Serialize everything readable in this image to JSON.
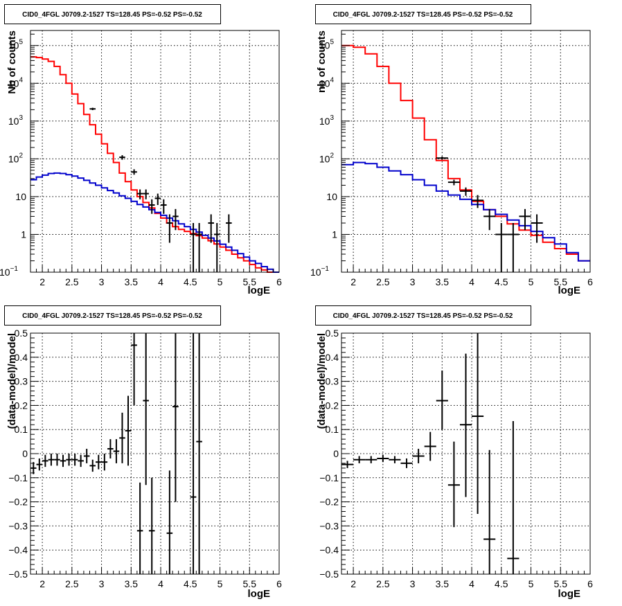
{
  "chart_data": [
    {
      "type": "line",
      "title": "CID0_4FGL J0709.2-1527 TS=128.45 PS=-0.52 PS=-0.52",
      "xlabel": "logE",
      "ylabel": "Nb of counts",
      "xlim": [
        1.8,
        6.0
      ],
      "ylim": [
        0.1,
        250000
      ],
      "yscale": "log",
      "grid": true,
      "x_ticks": [
        "2",
        "2.5",
        "3",
        "3.5",
        "4",
        "4.5",
        "5",
        "5.5",
        "6"
      ],
      "y_ticks": [
        {
          "value": 0.1,
          "m": "10",
          "e": "−1"
        },
        {
          "value": 1,
          "m": "1",
          "e": ""
        },
        {
          "value": 10,
          "m": "10",
          "e": ""
        },
        {
          "value": 100,
          "m": "10",
          "e": "2"
        },
        {
          "value": 1000,
          "m": "10",
          "e": "3"
        },
        {
          "value": 10000,
          "m": "10",
          "e": "4"
        },
        {
          "value": 100000,
          "m": "10",
          "e": "5"
        }
      ],
      "bin_width": 0.1,
      "series": [
        {
          "name": "",
          "color": "#ff0000",
          "style": "step",
          "x": [
            1.8,
            1.9,
            2.0,
            2.1,
            2.2,
            2.3,
            2.4,
            2.5,
            2.6,
            2.7,
            2.8,
            2.9,
            3.0,
            3.1,
            3.2,
            3.3,
            3.4,
            3.5,
            3.6,
            3.7,
            3.8,
            3.9,
            4.0,
            4.1,
            4.2,
            4.3,
            4.4,
            4.5,
            4.6,
            4.7,
            4.8,
            4.9,
            5.0,
            5.1,
            5.2,
            5.3,
            5.4,
            5.5,
            5.6,
            5.7,
            5.8,
            5.9
          ],
          "values": [
            50000,
            48000,
            44000,
            38000,
            28000,
            17000,
            10000,
            5200,
            2900,
            1500,
            800,
            450,
            250,
            140,
            80,
            42,
            25,
            15,
            10,
            7,
            5,
            3.6,
            2.7,
            2.0,
            1.6,
            1.35,
            1.2,
            1.05,
            0.93,
            0.8,
            0.68,
            0.56,
            0.46,
            0.38,
            0.3,
            0.24,
            0.2,
            0.16,
            0.13,
            0.115,
            0.1,
            0.1
          ]
        },
        {
          "name": "",
          "color": "#0000cc",
          "style": "step",
          "x": [
            1.8,
            1.9,
            2.0,
            2.1,
            2.2,
            2.3,
            2.4,
            2.5,
            2.6,
            2.7,
            2.8,
            2.9,
            3.0,
            3.1,
            3.2,
            3.3,
            3.4,
            3.5,
            3.6,
            3.7,
            3.8,
            3.9,
            4.0,
            4.1,
            4.2,
            4.3,
            4.4,
            4.5,
            4.6,
            4.7,
            4.8,
            4.9,
            5.0,
            5.1,
            5.2,
            5.3,
            5.4,
            5.5,
            5.6,
            5.7,
            5.8,
            5.9
          ],
          "values": [
            28,
            33,
            37,
            41,
            42,
            41,
            38,
            35,
            31,
            27,
            23,
            20,
            17,
            14.5,
            12.5,
            10.5,
            9,
            7.5,
            6.2,
            5.3,
            4.5,
            3.8,
            3.2,
            2.7,
            2.3,
            1.9,
            1.6,
            1.35,
            1.15,
            0.95,
            0.8,
            0.67,
            0.55,
            0.46,
            0.38,
            0.31,
            0.25,
            0.2,
            0.17,
            0.14,
            0.12,
            0.1
          ]
        },
        {
          "name": "",
          "color": "#000000",
          "style": "points",
          "points": [
            {
              "x": 2.85,
              "y": 2100,
              "lo": 1950,
              "hi": 2250
            },
            {
              "x": 3.35,
              "y": 110,
              "lo": 95,
              "hi": 125
            },
            {
              "x": 3.55,
              "y": 45,
              "lo": 38,
              "hi": 53
            },
            {
              "x": 3.65,
              "y": 12,
              "lo": 8.5,
              "hi": 15.5
            },
            {
              "x": 3.75,
              "y": 12,
              "lo": 8.5,
              "hi": 15.5
            },
            {
              "x": 3.85,
              "y": 6,
              "lo": 3.5,
              "hi": 8.5
            },
            {
              "x": 3.95,
              "y": 9,
              "lo": 6,
              "hi": 12
            },
            {
              "x": 4.05,
              "y": 6,
              "lo": 3.5,
              "hi": 8.5
            },
            {
              "x": 4.15,
              "y": 2,
              "lo": 0.6,
              "hi": 3.4
            },
            {
              "x": 4.25,
              "y": 3,
              "lo": 1.3,
              "hi": 4.7
            },
            {
              "x": 4.55,
              "y": 1,
              "lo": 0.1,
              "hi": 2.0
            },
            {
              "x": 4.65,
              "y": 1,
              "lo": 0.1,
              "hi": 2.0
            },
            {
              "x": 4.85,
              "y": 2,
              "lo": 0.6,
              "hi": 3.4
            },
            {
              "x": 4.95,
              "y": 1,
              "lo": 0.1,
              "hi": 2.0
            },
            {
              "x": 5.15,
              "y": 2,
              "lo": 0.6,
              "hi": 3.4
            }
          ]
        }
      ]
    },
    {
      "type": "line",
      "title": "CID0_4FGL J0709.2-1527 TS=128.45 PS=-0.52 PS=-0.52",
      "xlabel": "logE",
      "ylabel": "nb of counts",
      "xlim": [
        1.8,
        6.0
      ],
      "ylim": [
        0.1,
        250000
      ],
      "yscale": "log",
      "grid": true,
      "x_ticks": [
        "2",
        "2.5",
        "3",
        "3.5",
        "4",
        "4.5",
        "5",
        "5.5",
        "6"
      ],
      "y_ticks": [
        {
          "value": 0.1,
          "m": "10",
          "e": "−1"
        },
        {
          "value": 1,
          "m": "1",
          "e": ""
        },
        {
          "value": 10,
          "m": "10",
          "e": ""
        },
        {
          "value": 100,
          "m": "10",
          "e": "2"
        },
        {
          "value": 1000,
          "m": "10",
          "e": "3"
        },
        {
          "value": 10000,
          "m": "10",
          "e": "4"
        },
        {
          "value": 100000,
          "m": "10",
          "e": "5"
        }
      ],
      "bin_width": 0.2,
      "series": [
        {
          "name": "",
          "color": "#ff0000",
          "style": "step",
          "x": [
            1.8,
            2.0,
            2.2,
            2.4,
            2.6,
            2.8,
            3.0,
            3.2,
            3.4,
            3.6,
            3.8,
            4.0,
            4.2,
            4.4,
            4.6,
            4.8,
            5.0,
            5.2,
            5.4,
            5.6,
            5.8
          ],
          "values": [
            100000,
            90000,
            60000,
            28000,
            10000,
            3500,
            1200,
            320,
            90,
            30,
            15,
            7.5,
            4.5,
            3.0,
            1.9,
            1.3,
            0.95,
            0.62,
            0.42,
            0.3,
            0.2
          ]
        },
        {
          "name": "",
          "color": "#0000cc",
          "style": "step",
          "x": [
            1.8,
            2.0,
            2.2,
            2.4,
            2.6,
            2.8,
            3.0,
            3.2,
            3.4,
            3.6,
            3.8,
            4.0,
            4.2,
            4.4,
            4.6,
            4.8,
            5.0,
            5.2,
            5.4,
            5.6,
            5.8
          ],
          "values": [
            70,
            80,
            75,
            60,
            48,
            38,
            28,
            20,
            14,
            11,
            8.5,
            6.2,
            4.5,
            3.4,
            2.4,
            1.7,
            1.2,
            0.82,
            0.56,
            0.33,
            0.2
          ]
        },
        {
          "name": "",
          "color": "#000000",
          "style": "points",
          "points": [
            {
              "x": 3.5,
              "y": 105,
              "lo": 95,
              "hi": 115
            },
            {
              "x": 3.7,
              "y": 24,
              "lo": 20,
              "hi": 28
            },
            {
              "x": 3.9,
              "y": 14,
              "lo": 10.5,
              "hi": 17.5
            },
            {
              "x": 4.1,
              "y": 8,
              "lo": 5,
              "hi": 11
            },
            {
              "x": 4.3,
              "y": 3,
              "lo": 1.3,
              "hi": 4.7
            },
            {
              "x": 4.5,
              "y": 1,
              "lo": 0.1,
              "hi": 2.0
            },
            {
              "x": 4.7,
              "y": 1,
              "lo": 0.1,
              "hi": 2.0
            },
            {
              "x": 4.9,
              "y": 3,
              "lo": 1.3,
              "hi": 4.7
            },
            {
              "x": 5.1,
              "y": 2,
              "lo": 0.6,
              "hi": 3.4
            }
          ]
        }
      ]
    },
    {
      "type": "scatter",
      "title": "CID0_4FGL J0709.2-1527 TS=128.45 PS=-0.52 PS=-0.52",
      "xlabel": "logE",
      "ylabel": "(data-model)/model",
      "xlim": [
        1.8,
        6.0
      ],
      "ylim": [
        -0.5,
        0.5
      ],
      "yscale": "linear",
      "grid": true,
      "x_ticks": [
        "2",
        "2.5",
        "3",
        "3.5",
        "4",
        "4.5",
        "5",
        "5.5",
        "6"
      ],
      "y_ticks": [
        {
          "value": 0.5,
          "label": "0.5"
        },
        {
          "value": 0.4,
          "label": "0.4"
        },
        {
          "value": 0.3,
          "label": "0.3"
        },
        {
          "value": 0.2,
          "label": "0.2"
        },
        {
          "value": 0.1,
          "label": "0.1"
        },
        {
          "value": 0,
          "label": "0"
        },
        {
          "value": -0.1,
          "label": "−0.1"
        },
        {
          "value": -0.2,
          "label": "−0.2"
        },
        {
          "value": -0.3,
          "label": "−0.3"
        },
        {
          "value": -0.4,
          "label": "−0.4"
        },
        {
          "value": -0.5,
          "label": "−0.5"
        }
      ],
      "bin_width": 0.1,
      "series": [
        {
          "name": "",
          "color": "#000000",
          "style": "points",
          "points": [
            {
              "x": 1.85,
              "y": -0.06,
              "lo": -0.085,
              "hi": -0.035
            },
            {
              "x": 1.95,
              "y": -0.045,
              "lo": -0.07,
              "hi": -0.02
            },
            {
              "x": 2.05,
              "y": -0.03,
              "lo": -0.055,
              "hi": -0.005
            },
            {
              "x": 2.15,
              "y": -0.025,
              "lo": -0.05,
              "hi": 0.0
            },
            {
              "x": 2.25,
              "y": -0.025,
              "lo": -0.05,
              "hi": 0.0
            },
            {
              "x": 2.35,
              "y": -0.03,
              "lo": -0.055,
              "hi": -0.005
            },
            {
              "x": 2.45,
              "y": -0.025,
              "lo": -0.05,
              "hi": 0.0
            },
            {
              "x": 2.55,
              "y": -0.025,
              "lo": -0.05,
              "hi": 0.0
            },
            {
              "x": 2.65,
              "y": -0.03,
              "lo": -0.055,
              "hi": -0.005
            },
            {
              "x": 2.75,
              "y": -0.01,
              "lo": -0.04,
              "hi": 0.02
            },
            {
              "x": 2.85,
              "y": -0.05,
              "lo": -0.075,
              "hi": -0.025
            },
            {
              "x": 2.95,
              "y": -0.035,
              "lo": -0.065,
              "hi": -0.005
            },
            {
              "x": 3.05,
              "y": -0.035,
              "lo": -0.07,
              "hi": 0.0
            },
            {
              "x": 3.15,
              "y": 0.02,
              "lo": -0.02,
              "hi": 0.06
            },
            {
              "x": 3.25,
              "y": 0.01,
              "lo": -0.04,
              "hi": 0.06
            },
            {
              "x": 3.35,
              "y": 0.065,
              "lo": -0.04,
              "hi": 0.17
            },
            {
              "x": 3.45,
              "y": 0.095,
              "lo": -0.05,
              "hi": 0.24
            },
            {
              "x": 3.55,
              "y": 0.45,
              "lo": 0.2,
              "hi": 0.5
            },
            {
              "x": 3.65,
              "y": -0.32,
              "lo": -0.5,
              "hi": -0.12
            },
            {
              "x": 3.75,
              "y": 0.22,
              "lo": -0.13,
              "hi": 0.5
            },
            {
              "x": 3.85,
              "y": -0.32,
              "lo": -0.5,
              "hi": -0.1
            },
            {
              "x": 4.15,
              "y": -0.33,
              "lo": -0.5,
              "hi": -0.07
            },
            {
              "x": 4.25,
              "y": 0.195,
              "lo": -0.2,
              "hi": 0.5
            },
            {
              "x": 4.55,
              "y": -0.18,
              "lo": -0.5,
              "hi": 0.5
            },
            {
              "x": 4.65,
              "y": 0.05,
              "lo": -0.5,
              "hi": 0.5
            }
          ]
        }
      ]
    },
    {
      "type": "scatter",
      "title": "CID0_4FGL J0709.2-1527 TS=128.45 PS=-0.52 PS=-0.52",
      "xlabel": "logE",
      "ylabel": "(data-model)/model",
      "xlim": [
        1.8,
        6.0
      ],
      "ylim": [
        -0.5,
        0.5
      ],
      "yscale": "linear",
      "grid": true,
      "x_ticks": [
        "2",
        "2.5",
        "3",
        "3.5",
        "4",
        "4.5",
        "5",
        "5.5",
        "6"
      ],
      "y_ticks": [
        {
          "value": 0.5,
          "label": "0.5"
        },
        {
          "value": 0.4,
          "label": "0.4"
        },
        {
          "value": 0.3,
          "label": "0.3"
        },
        {
          "value": 0.2,
          "label": "0.2"
        },
        {
          "value": 0.1,
          "label": "0.1"
        },
        {
          "value": 0,
          "label": "0"
        },
        {
          "value": -0.1,
          "label": "−0.1"
        },
        {
          "value": -0.2,
          "label": "−0.2"
        },
        {
          "value": -0.3,
          "label": "−0.3"
        },
        {
          "value": -0.4,
          "label": "−0.4"
        },
        {
          "value": -0.5,
          "label": "−0.5"
        }
      ],
      "bin_width": 0.2,
      "series": [
        {
          "name": "",
          "color": "#000000",
          "style": "points",
          "points": [
            {
              "x": 1.9,
              "y": -0.045,
              "lo": -0.06,
              "hi": -0.03
            },
            {
              "x": 2.1,
              "y": -0.025,
              "lo": -0.04,
              "hi": -0.01
            },
            {
              "x": 2.3,
              "y": -0.025,
              "lo": -0.04,
              "hi": -0.01
            },
            {
              "x": 2.5,
              "y": -0.02,
              "lo": -0.035,
              "hi": -0.005
            },
            {
              "x": 2.7,
              "y": -0.025,
              "lo": -0.04,
              "hi": -0.01
            },
            {
              "x": 2.9,
              "y": -0.04,
              "lo": -0.06,
              "hi": -0.02
            },
            {
              "x": 3.1,
              "y": -0.01,
              "lo": -0.04,
              "hi": 0.02
            },
            {
              "x": 3.3,
              "y": 0.03,
              "lo": -0.03,
              "hi": 0.09
            },
            {
              "x": 3.5,
              "y": 0.22,
              "lo": 0.1,
              "hi": 0.345
            },
            {
              "x": 3.7,
              "y": -0.13,
              "lo": -0.305,
              "hi": 0.05
            },
            {
              "x": 3.9,
              "y": 0.12,
              "lo": -0.18,
              "hi": 0.415
            },
            {
              "x": 4.1,
              "y": 0.155,
              "lo": -0.25,
              "hi": 0.5
            },
            {
              "x": 4.3,
              "y": -0.355,
              "lo": -0.5,
              "hi": 0.015
            },
            {
              "x": 4.7,
              "y": -0.435,
              "lo": -0.5,
              "hi": 0.135
            }
          ]
        }
      ]
    }
  ]
}
